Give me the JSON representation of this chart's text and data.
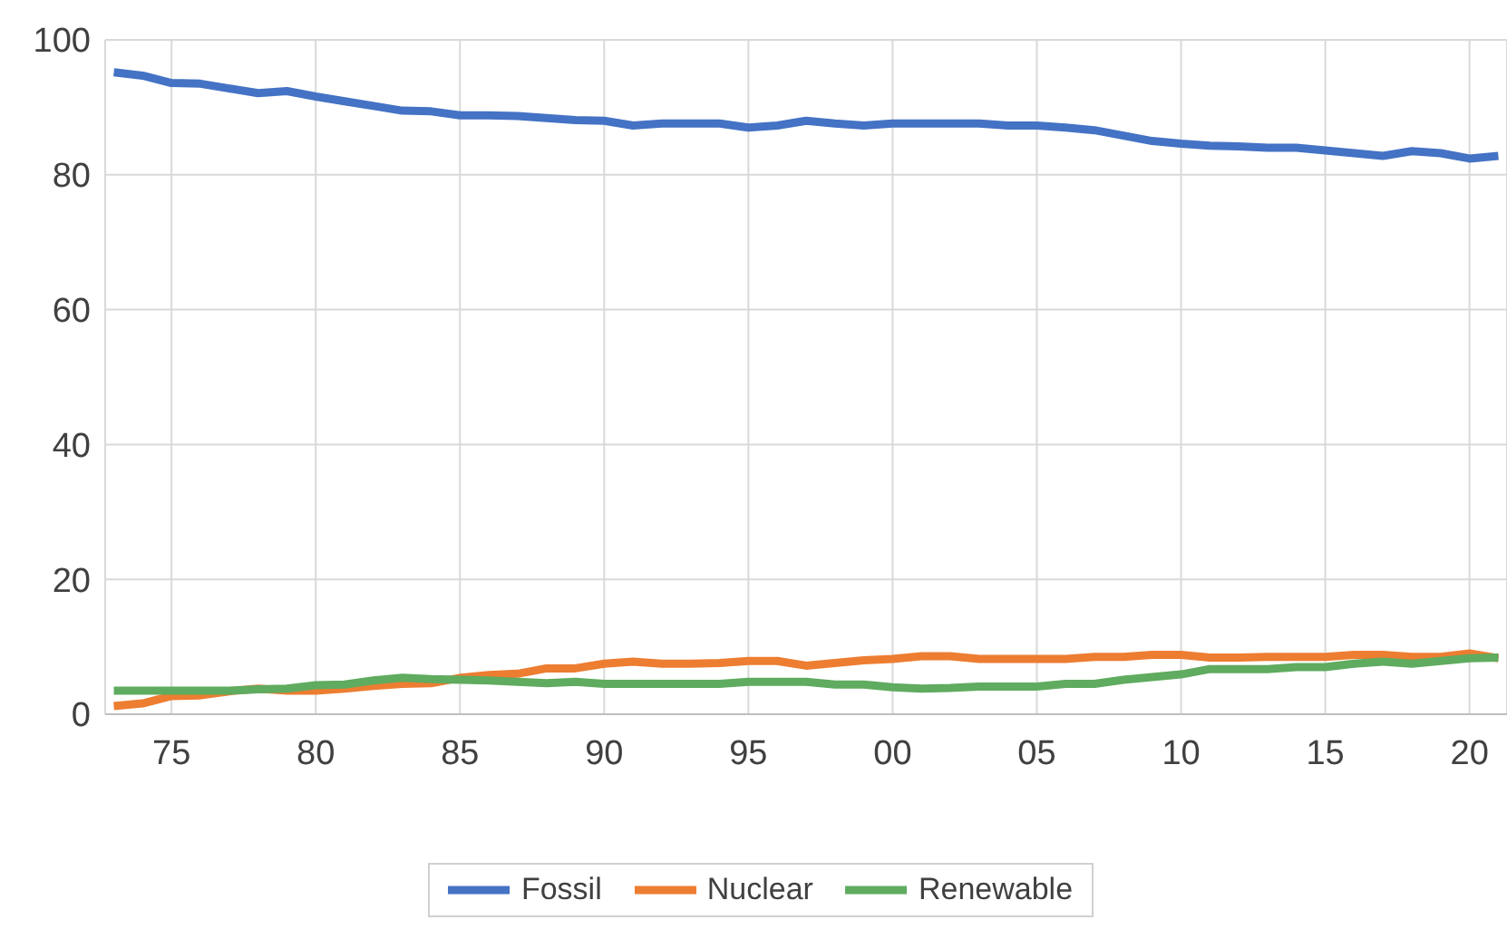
{
  "chart_data": {
    "type": "line",
    "categories": [
      null,
      null,
      "75",
      null,
      null,
      null,
      null,
      "80",
      null,
      null,
      null,
      null,
      "85",
      null,
      null,
      null,
      null,
      "90",
      null,
      null,
      null,
      null,
      "95",
      null,
      null,
      null,
      null,
      "00",
      null,
      null,
      null,
      null,
      "05",
      null,
      null,
      null,
      null,
      "10",
      null,
      null,
      null,
      null,
      "15",
      null,
      null,
      null,
      null,
      "20",
      null
    ],
    "series": [
      {
        "name": "Fossil",
        "color": "#4472c4",
        "values": [
          95.2,
          94.7,
          93.6,
          93.5,
          92.8,
          92.1,
          92.4,
          91.6,
          90.9,
          90.2,
          89.5,
          89.4,
          88.8,
          88.8,
          88.7,
          88.4,
          88.1,
          88.0,
          87.3,
          87.6,
          87.6,
          87.6,
          87.0,
          87.3,
          88.0,
          87.6,
          87.3,
          87.6,
          87.6,
          87.6,
          87.6,
          87.3,
          87.3,
          87.0,
          86.6,
          85.8,
          85.0,
          84.6,
          84.3,
          84.2,
          84.0,
          84.0,
          83.6,
          83.2,
          82.8,
          83.5,
          83.2,
          82.4,
          82.8
        ]
      },
      {
        "name": "Nuclear",
        "color": "#ed7d31",
        "values": [
          1.2,
          1.6,
          2.7,
          2.8,
          3.4,
          3.8,
          3.5,
          3.5,
          3.8,
          4.2,
          4.5,
          4.6,
          5.4,
          5.8,
          6.0,
          6.8,
          6.8,
          7.5,
          7.8,
          7.5,
          7.5,
          7.6,
          7.9,
          7.9,
          7.2,
          7.6,
          8.0,
          8.2,
          8.6,
          8.6,
          8.2,
          8.2,
          8.2,
          8.2,
          8.5,
          8.5,
          8.8,
          8.8,
          8.4,
          8.4,
          8.5,
          8.5,
          8.5,
          8.8,
          8.8,
          8.5,
          8.5,
          9.0,
          8.3
        ]
      },
      {
        "name": "Renewable",
        "color": "#5fab5f",
        "values": [
          3.5,
          3.5,
          3.5,
          3.5,
          3.5,
          3.7,
          3.8,
          4.3,
          4.4,
          5.0,
          5.4,
          5.2,
          5.1,
          5.0,
          4.8,
          4.6,
          4.8,
          4.5,
          4.5,
          4.5,
          4.5,
          4.5,
          4.8,
          4.8,
          4.8,
          4.4,
          4.4,
          4.0,
          3.8,
          3.9,
          4.1,
          4.1,
          4.1,
          4.5,
          4.5,
          5.1,
          5.5,
          5.9,
          6.7,
          6.7,
          6.7,
          7.0,
          7.0,
          7.5,
          7.8,
          7.5,
          7.9,
          8.3,
          8.4
        ]
      }
    ],
    "ylim": [
      0,
      100
    ],
    "yticks": [
      0,
      20,
      40,
      60,
      80,
      100
    ],
    "grid": true,
    "legend": "bottom"
  }
}
